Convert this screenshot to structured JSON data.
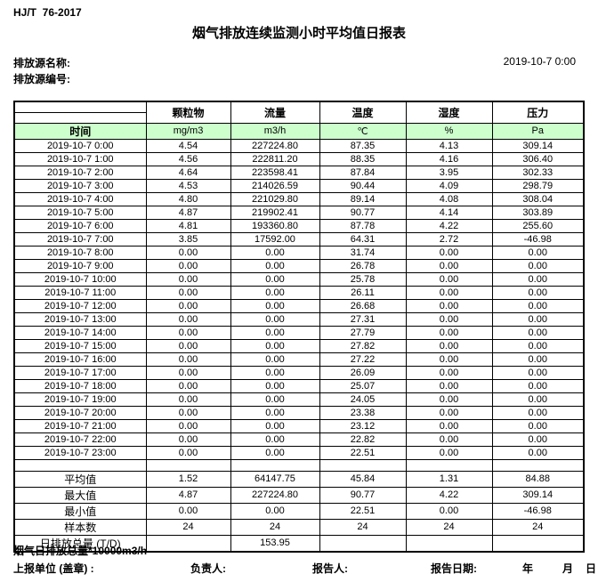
{
  "page": {
    "standard_code": "HJ/T  76-2017",
    "title": "烟气排放连续监测小时平均值日报表",
    "source_name_label": "排放源名称:",
    "source_code_label": "排放源编号:",
    "datetime": "2019-10-7 0:00"
  },
  "colors": {
    "units_row_bg": "#ccffcc",
    "border": "#000000"
  },
  "table": {
    "time_header": "时间",
    "param_headers": [
      "颗粒物",
      "流量",
      "温度",
      "湿度",
      "压力"
    ],
    "units": [
      "mg/m3",
      "m3/h",
      "℃",
      "%",
      "Pa"
    ],
    "rows": [
      {
        "time": "2019-10-7 0:00",
        "values": [
          "4.54",
          "227224.80",
          "87.35",
          "4.13",
          "309.14"
        ]
      },
      {
        "time": "2019-10-7 1:00",
        "values": [
          "4.56",
          "222811.20",
          "88.35",
          "4.16",
          "306.40"
        ]
      },
      {
        "time": "2019-10-7 2:00",
        "values": [
          "4.64",
          "223598.41",
          "87.84",
          "3.95",
          "302.33"
        ]
      },
      {
        "time": "2019-10-7 3:00",
        "values": [
          "4.53",
          "214026.59",
          "90.44",
          "4.09",
          "298.79"
        ]
      },
      {
        "time": "2019-10-7 4:00",
        "values": [
          "4.80",
          "221029.80",
          "89.14",
          "4.08",
          "308.04"
        ]
      },
      {
        "time": "2019-10-7 5:00",
        "values": [
          "4.87",
          "219902.41",
          "90.77",
          "4.14",
          "303.89"
        ]
      },
      {
        "time": "2019-10-7 6:00",
        "values": [
          "4.81",
          "193360.80",
          "87.78",
          "4.22",
          "255.60"
        ]
      },
      {
        "time": "2019-10-7 7:00",
        "values": [
          "3.85",
          "17592.00",
          "64.31",
          "2.72",
          "-46.98"
        ]
      },
      {
        "time": "2019-10-7 8:00",
        "values": [
          "0.00",
          "0.00",
          "31.74",
          "0.00",
          "0.00"
        ]
      },
      {
        "time": "2019-10-7 9:00",
        "values": [
          "0.00",
          "0.00",
          "26.78",
          "0.00",
          "0.00"
        ]
      },
      {
        "time": "2019-10-7 10:00",
        "values": [
          "0.00",
          "0.00",
          "25.78",
          "0.00",
          "0.00"
        ]
      },
      {
        "time": "2019-10-7 11:00",
        "values": [
          "0.00",
          "0.00",
          "26.11",
          "0.00",
          "0.00"
        ]
      },
      {
        "time": "2019-10-7 12:00",
        "values": [
          "0.00",
          "0.00",
          "26.68",
          "0.00",
          "0.00"
        ]
      },
      {
        "time": "2019-10-7 13:00",
        "values": [
          "0.00",
          "0.00",
          "27.31",
          "0.00",
          "0.00"
        ]
      },
      {
        "time": "2019-10-7 14:00",
        "values": [
          "0.00",
          "0.00",
          "27.79",
          "0.00",
          "0.00"
        ]
      },
      {
        "time": "2019-10-7 15:00",
        "values": [
          "0.00",
          "0.00",
          "27.82",
          "0.00",
          "0.00"
        ]
      },
      {
        "time": "2019-10-7 16:00",
        "values": [
          "0.00",
          "0.00",
          "27.22",
          "0.00",
          "0.00"
        ]
      },
      {
        "time": "2019-10-7 17:00",
        "values": [
          "0.00",
          "0.00",
          "26.09",
          "0.00",
          "0.00"
        ]
      },
      {
        "time": "2019-10-7 18:00",
        "values": [
          "0.00",
          "0.00",
          "25.07",
          "0.00",
          "0.00"
        ]
      },
      {
        "time": "2019-10-7 19:00",
        "values": [
          "0.00",
          "0.00",
          "24.05",
          "0.00",
          "0.00"
        ]
      },
      {
        "time": "2019-10-7 20:00",
        "values": [
          "0.00",
          "0.00",
          "23.38",
          "0.00",
          "0.00"
        ]
      },
      {
        "time": "2019-10-7 21:00",
        "values": [
          "0.00",
          "0.00",
          "23.12",
          "0.00",
          "0.00"
        ]
      },
      {
        "time": "2019-10-7 22:00",
        "values": [
          "0.00",
          "0.00",
          "22.82",
          "0.00",
          "0.00"
        ]
      },
      {
        "time": "2019-10-7 23:00",
        "values": [
          "0.00",
          "0.00",
          "22.51",
          "0.00",
          "0.00"
        ]
      }
    ],
    "summary": [
      {
        "label": "平均值",
        "values": [
          "1.52",
          "64147.75",
          "45.84",
          "1.31",
          "84.88"
        ]
      },
      {
        "label": "最大值",
        "values": [
          "4.87",
          "227224.80",
          "90.77",
          "4.22",
          "309.14"
        ]
      },
      {
        "label": "最小值",
        "values": [
          "0.00",
          "0.00",
          "22.51",
          "0.00",
          "-46.98"
        ]
      },
      {
        "label": "样本数",
        "values": [
          "24",
          "24",
          "24",
          "24",
          "24"
        ]
      },
      {
        "label": "日排放总量 (T/D)",
        "values": [
          "",
          "153.95",
          "",
          "",
          ""
        ]
      }
    ]
  },
  "footer": {
    "note": "烟气日排放总量*10000m3/h",
    "report_unit_label": "上报单位 (盖章) :",
    "responsible_label": "负责人:",
    "reporter_label": "报告人:",
    "report_date_label": "报告日期:",
    "year_label": "年",
    "month_label": "月",
    "day_label": "日"
  }
}
